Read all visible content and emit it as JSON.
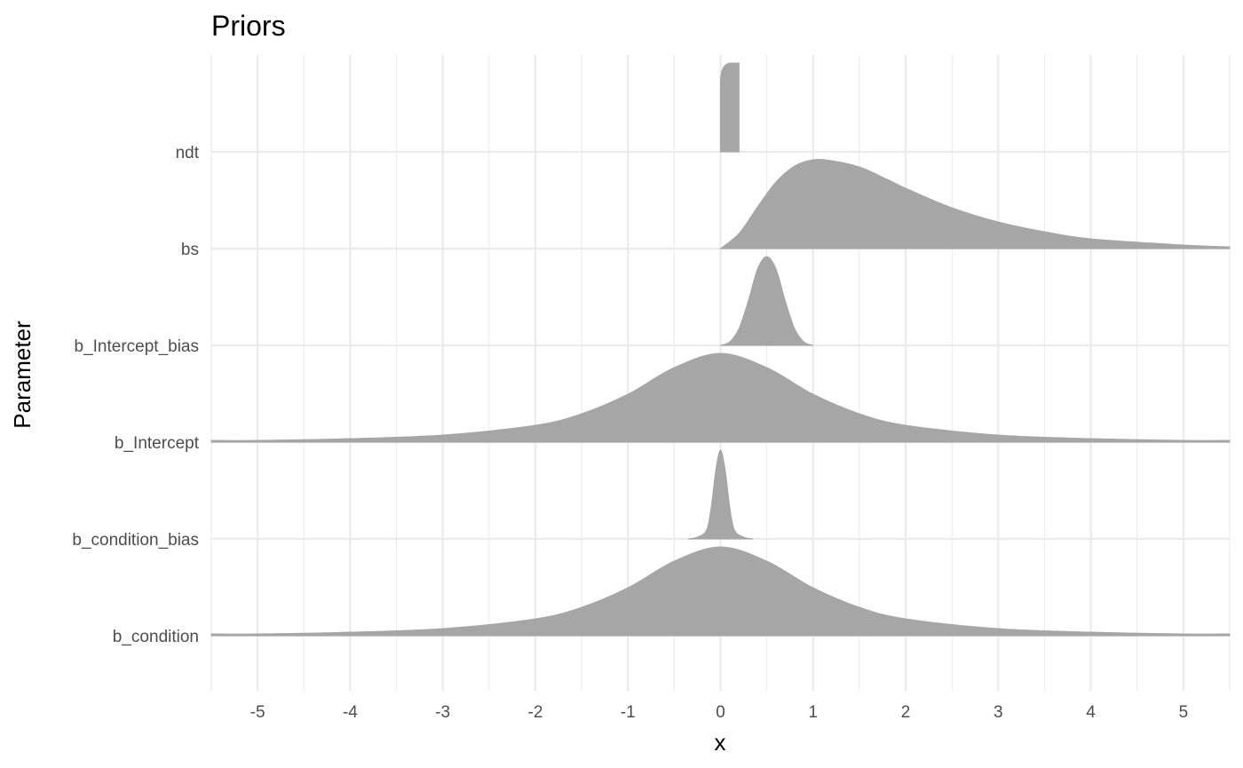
{
  "chart_data": {
    "type": "area",
    "subtype": "ridgeline",
    "title": "Priors",
    "xlabel": "x",
    "ylabel": "Parameter",
    "xlim": [
      -5.5,
      5.5
    ],
    "x_ticks": [
      -5,
      -4,
      -3,
      -2,
      -1,
      0,
      1,
      2,
      3,
      4,
      5
    ],
    "categories": [
      "ndt",
      "bs",
      "b_Intercept_bias",
      "b_Intercept",
      "b_condition_bias",
      "b_condition"
    ],
    "grid": true,
    "legend": "none",
    "fill_color": "#a6a6a6",
    "series": [
      {
        "name": "ndt",
        "distribution": "uniform",
        "min": 0,
        "max": 0.2,
        "x": [
          0,
          0.02,
          0.05,
          0.1,
          0.15,
          0.2
        ],
        "density": [
          0.0,
          0.75,
          0.88,
          0.96,
          0.99,
          1.0
        ]
      },
      {
        "name": "bs",
        "distribution": "lognormal",
        "x": [
          0,
          0.2,
          0.4,
          0.6,
          0.8,
          1.0,
          1.2,
          1.5,
          1.8,
          2.0,
          2.5,
          3.0,
          3.5,
          4.0,
          5.0,
          5.5
        ],
        "density": [
          0.0,
          0.17,
          0.47,
          0.75,
          0.93,
          1.0,
          0.99,
          0.92,
          0.78,
          0.68,
          0.46,
          0.3,
          0.19,
          0.11,
          0.04,
          0.02
        ]
      },
      {
        "name": "b_Intercept_bias",
        "distribution": "normal",
        "mean": 0.5,
        "sd": 0.12,
        "x": [
          0,
          0.1,
          0.2,
          0.3,
          0.4,
          0.5,
          0.6,
          0.7,
          0.8,
          0.9,
          1.0
        ],
        "density": [
          0.0,
          0.04,
          0.19,
          0.5,
          0.86,
          1.0,
          0.86,
          0.5,
          0.19,
          0.04,
          0.0
        ]
      },
      {
        "name": "b_Intercept",
        "distribution": "student_t",
        "location": 0,
        "scale": 1,
        "x": [
          -5.5,
          -5,
          -4,
          -3,
          -2,
          -1.5,
          -1,
          -0.5,
          0,
          0.5,
          1,
          1.5,
          2,
          3,
          4,
          5,
          5.5
        ],
        "density": [
          0.02,
          0.02,
          0.04,
          0.08,
          0.19,
          0.32,
          0.54,
          0.84,
          1.0,
          0.84,
          0.54,
          0.32,
          0.19,
          0.08,
          0.04,
          0.02,
          0.02
        ]
      },
      {
        "name": "b_condition_bias",
        "distribution": "normal",
        "mean": 0,
        "sd": 0.07,
        "x": [
          -0.35,
          -0.25,
          -0.15,
          -0.1,
          -0.05,
          0,
          0.05,
          0.1,
          0.15,
          0.25,
          0.35
        ],
        "density": [
          0.0,
          0.02,
          0.1,
          0.36,
          0.78,
          1.0,
          0.78,
          0.36,
          0.1,
          0.02,
          0.0
        ]
      },
      {
        "name": "b_condition",
        "distribution": "student_t",
        "location": 0,
        "scale": 1,
        "x": [
          -5.5,
          -5,
          -4,
          -3,
          -2,
          -1.5,
          -1,
          -0.5,
          0,
          0.5,
          1,
          1.5,
          2,
          3,
          4,
          5,
          5.5
        ],
        "density": [
          0.02,
          0.02,
          0.04,
          0.08,
          0.19,
          0.32,
          0.54,
          0.84,
          1.0,
          0.84,
          0.54,
          0.32,
          0.19,
          0.08,
          0.04,
          0.02,
          0.02
        ]
      }
    ]
  }
}
